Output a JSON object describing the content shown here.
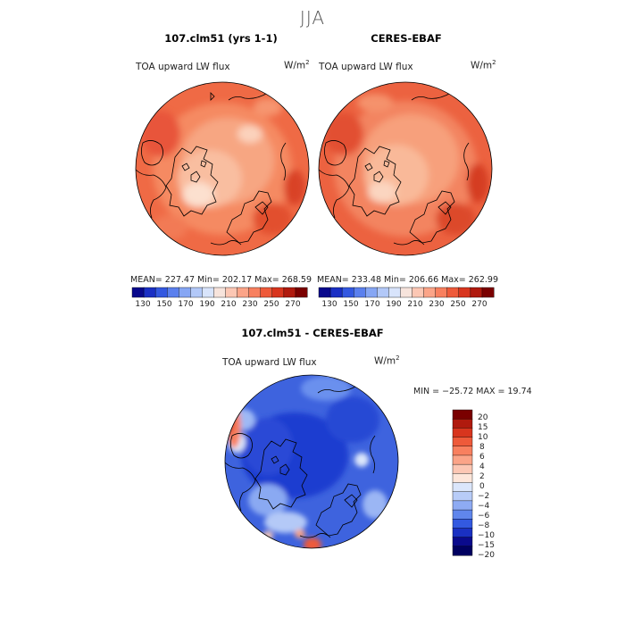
{
  "figure": {
    "season": "JJA"
  },
  "panels": [
    {
      "title": "107.clm51 (yrs 1-1)",
      "variable": "TOA upward LW flux",
      "units_base": "W/m",
      "units_exp": "2",
      "stats": "MEAN= 227.47   Min= 202.17   Max= 268.59"
    },
    {
      "title": "CERES-EBAF",
      "variable": "TOA upward LW flux",
      "units_base": "W/m",
      "units_exp": "2",
      "stats": "MEAN= 233.48   Min= 206.66   Max= 262.99"
    },
    {
      "title": "107.clm51 - CERES-EBAF",
      "variable": "TOA upward LW flux",
      "units_base": "W/m",
      "units_exp": "2",
      "stats": "MIN = −25.72  MAX =  19.74"
    }
  ],
  "colorbars": {
    "absolute": {
      "ticks": [
        "130",
        "150",
        "170",
        "190",
        "210",
        "230",
        "250",
        "270"
      ],
      "colors": [
        "#08088c",
        "#1a2fc4",
        "#3358e0",
        "#5b80ee",
        "#86a6f4",
        "#b2c8f8",
        "#d8e4fb",
        "#f7e4dc",
        "#fcc7b4",
        "#fba488",
        "#f8805f",
        "#ee5a3a",
        "#d8351e",
        "#b01a0e",
        "#7a0000"
      ]
    },
    "difference": {
      "ticks": [
        "20",
        "15",
        "10",
        "8",
        "6",
        "4",
        "2",
        "0",
        "−2",
        "−4",
        "−6",
        "−8",
        "−10",
        "−15",
        "−20"
      ],
      "colors": [
        "#7a0000",
        "#b01a0e",
        "#d8351e",
        "#ee5a3a",
        "#f8805f",
        "#fba488",
        "#fcc7b4",
        "#fde6da",
        "#dbe6fb",
        "#b8ccf8",
        "#8eabf3",
        "#6086ec",
        "#3359e0",
        "#1a30c2",
        "#0a0a8c",
        "#000060"
      ]
    }
  }
}
